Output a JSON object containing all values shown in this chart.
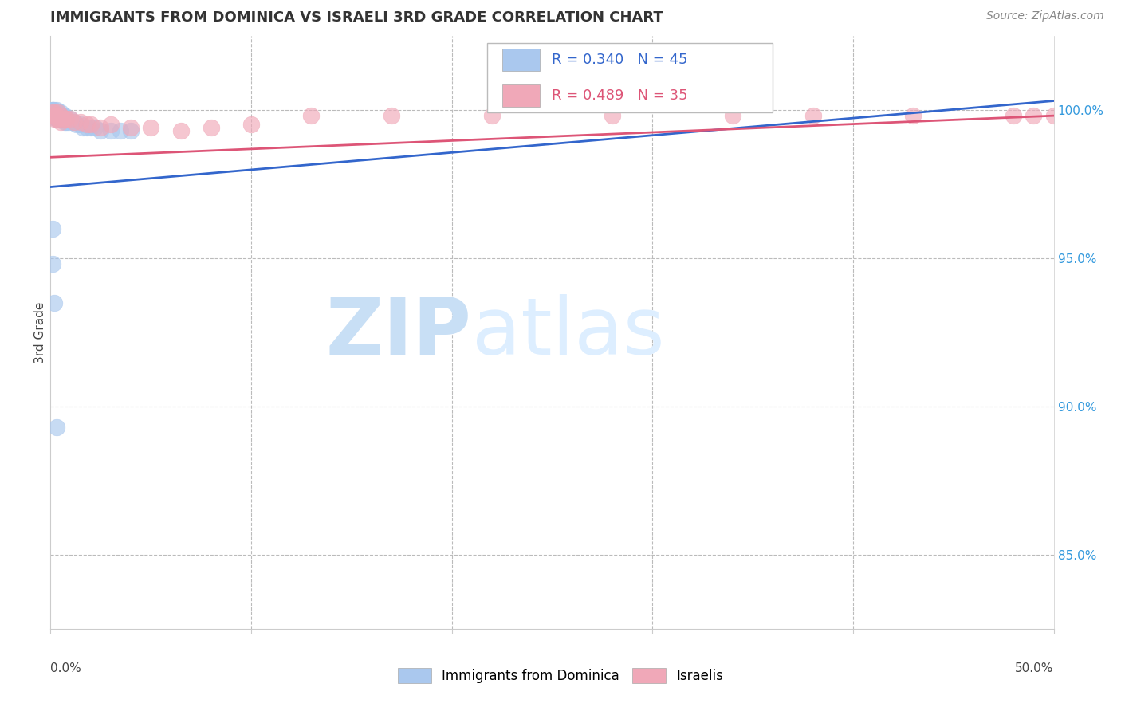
{
  "title": "IMMIGRANTS FROM DOMINICA VS ISRAELI 3RD GRADE CORRELATION CHART",
  "source": "Source: ZipAtlas.com",
  "ylabel": "3rd Grade",
  "ytick_labels": [
    "85.0%",
    "90.0%",
    "95.0%",
    "100.0%"
  ],
  "ytick_values": [
    0.85,
    0.9,
    0.95,
    1.0
  ],
  "xmin": 0.0,
  "xmax": 0.5,
  "ymin": 0.825,
  "ymax": 1.025,
  "legend_blue_r": "R = 0.340",
  "legend_blue_n": "N = 45",
  "legend_pink_r": "R = 0.489",
  "legend_pink_n": "N = 35",
  "blue_color": "#aac8ee",
  "pink_color": "#f0a8b8",
  "blue_line_color": "#3366cc",
  "pink_line_color": "#dd5577",
  "blue_points_x": [
    0.001,
    0.001,
    0.001,
    0.001,
    0.002,
    0.002,
    0.002,
    0.002,
    0.002,
    0.003,
    0.003,
    0.003,
    0.003,
    0.003,
    0.003,
    0.004,
    0.004,
    0.004,
    0.005,
    0.005,
    0.005,
    0.006,
    0.006,
    0.007,
    0.007,
    0.008,
    0.008,
    0.009,
    0.01,
    0.011,
    0.012,
    0.013,
    0.015,
    0.016,
    0.018,
    0.02,
    0.022,
    0.025,
    0.03,
    0.035,
    0.04,
    0.001,
    0.001,
    0.002,
    0.003
  ],
  "blue_points_y": [
    1.0,
    1.0,
    1.0,
    0.999,
    1.0,
    0.999,
    0.999,
    0.998,
    0.998,
    1.0,
    0.999,
    0.999,
    0.998,
    0.997,
    0.997,
    0.999,
    0.998,
    0.997,
    0.999,
    0.998,
    0.997,
    0.998,
    0.997,
    0.998,
    0.996,
    0.997,
    0.996,
    0.996,
    0.997,
    0.996,
    0.996,
    0.995,
    0.995,
    0.994,
    0.994,
    0.994,
    0.994,
    0.993,
    0.993,
    0.993,
    0.993,
    0.96,
    0.948,
    0.935,
    0.893
  ],
  "pink_points_x": [
    0.001,
    0.001,
    0.002,
    0.002,
    0.003,
    0.003,
    0.004,
    0.004,
    0.005,
    0.005,
    0.006,
    0.007,
    0.008,
    0.01,
    0.012,
    0.015,
    0.018,
    0.02,
    0.025,
    0.03,
    0.04,
    0.05,
    0.065,
    0.08,
    0.1,
    0.13,
    0.17,
    0.22,
    0.28,
    0.34,
    0.38,
    0.43,
    0.48,
    0.49,
    0.5
  ],
  "pink_points_y": [
    0.999,
    0.998,
    0.999,
    0.997,
    0.998,
    0.997,
    0.999,
    0.997,
    0.998,
    0.996,
    0.997,
    0.997,
    0.997,
    0.997,
    0.996,
    0.996,
    0.995,
    0.995,
    0.994,
    0.995,
    0.994,
    0.994,
    0.993,
    0.994,
    0.995,
    0.998,
    0.998,
    0.998,
    0.998,
    0.998,
    0.998,
    0.998,
    0.998,
    0.998,
    0.998
  ],
  "watermark_zip": "ZIP",
  "watermark_atlas": "atlas",
  "watermark_color": "#ddeeff",
  "grid_color": "#bbbbbb",
  "spine_color": "#cccccc"
}
